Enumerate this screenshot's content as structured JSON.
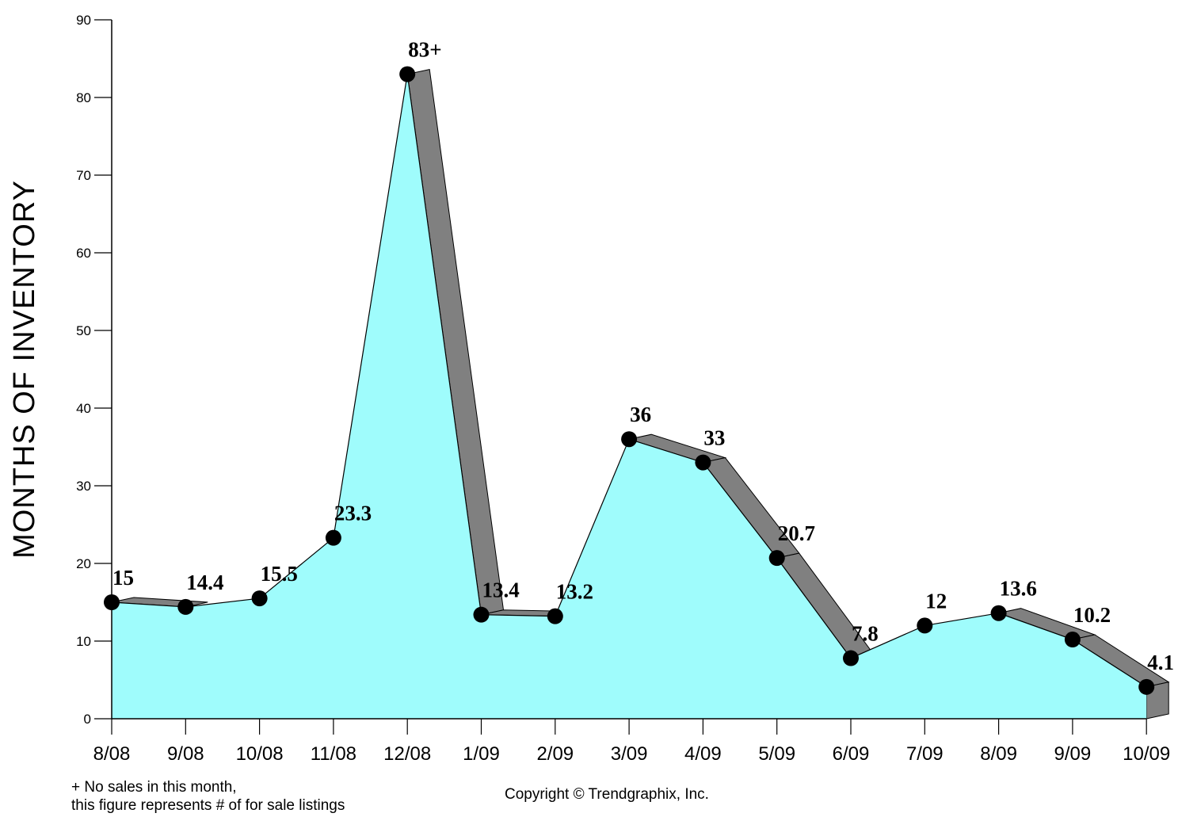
{
  "chart_data": {
    "type": "area",
    "categories": [
      "8/08",
      "9/08",
      "10/08",
      "11/08",
      "12/08",
      "1/09",
      "2/09",
      "3/09",
      "4/09",
      "5/09",
      "6/09",
      "7/09",
      "8/09",
      "9/09",
      "10/09"
    ],
    "values": [
      15,
      14.4,
      15.5,
      23.3,
      83,
      13.4,
      13.2,
      36,
      33,
      20.7,
      7.8,
      12,
      13.6,
      10.2,
      4.1
    ],
    "data_labels": [
      "15",
      "14.4",
      "15.5",
      "23.3",
      "83+",
      "13.4",
      "13.2",
      "36",
      "33",
      "20.7",
      "7.8",
      "12",
      "13.6",
      "10.2",
      "4.1"
    ],
    "yticks": [
      0,
      10,
      20,
      30,
      40,
      50,
      60,
      70,
      80,
      90
    ],
    "ylim": [
      0,
      90
    ],
    "ylabel": "MONTHS OF INVENTORY",
    "xlabel": "",
    "title": "",
    "grid": false,
    "colors": {
      "fill": "#9ffcfc",
      "shadow": "#808080",
      "line": "#000000",
      "marker": "#000000"
    }
  },
  "footnote": {
    "line1": "+ No sales in this month,",
    "line2": "this figure represents # of for sale listings"
  },
  "copyright": "Copyright © Trendgraphix, Inc."
}
